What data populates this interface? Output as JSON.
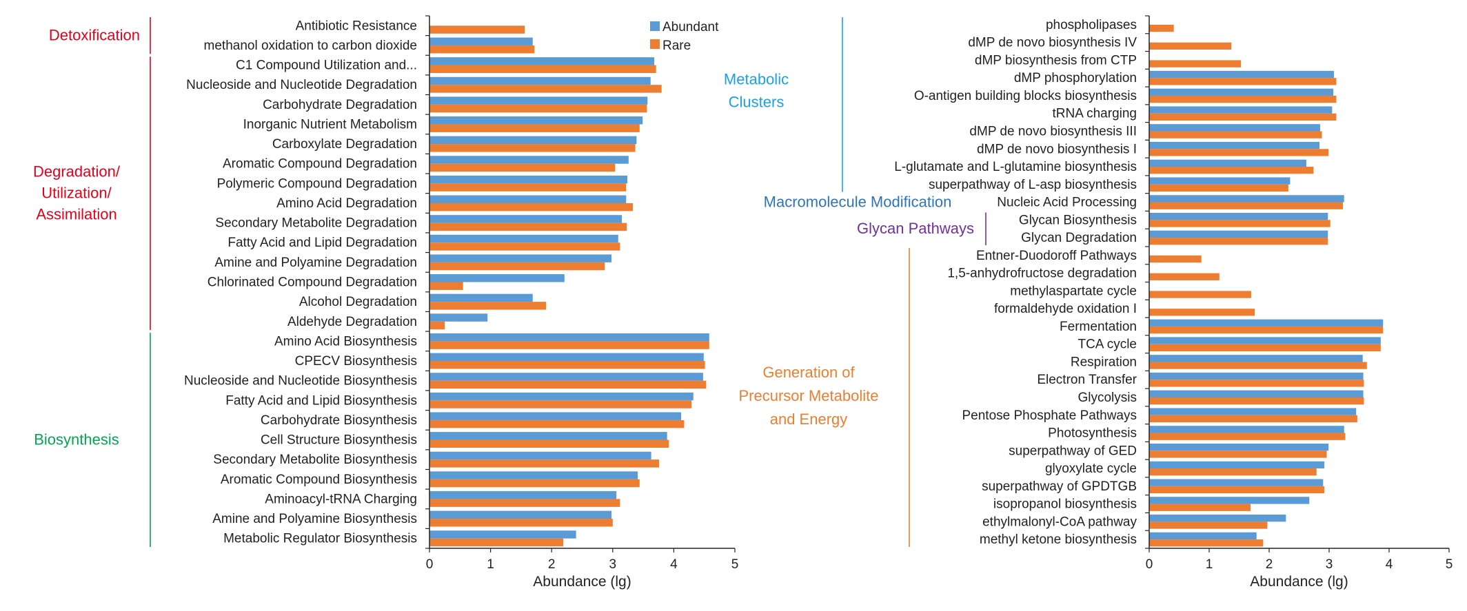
{
  "colors": {
    "abundant": "#5B9BD5",
    "rare": "#ED7D31",
    "axis": "#222222",
    "detox": "#E3001B",
    "degradation": "#E3001B",
    "biosynthesis": "#00A651",
    "metabolic_clusters": "#1BA1E2",
    "macromolecule": "#2E75B6",
    "glycan": "#7030A0",
    "generation": "#ED7D31"
  },
  "legend": {
    "position": "top-right",
    "abundant_label": "Abundant",
    "rare_label": "Rare"
  },
  "chart_data": [
    {
      "type": "bar",
      "orientation": "horizontal",
      "xlabel": "Abundance (lg)",
      "xlim": [
        0,
        5
      ],
      "xticks": [
        "0",
        "1",
        "2",
        "3",
        "4",
        "5"
      ],
      "grid": false,
      "categories": [
        "Antibiotic Resistance",
        "methanol oxidation to carbon dioxide",
        "C1 Compound Utilization and...",
        "Nucleoside and Nucleotide Degradation",
        "Carbohydrate Degradation",
        "Inorganic Nutrient Metabolism",
        "Carboxylate Degradation",
        "Aromatic Compound Degradation",
        "Polymeric Compound Degradation",
        "Amino Acid Degradation",
        "Secondary Metabolite Degradation",
        "Fatty Acid and Lipid Degradation",
        "Amine and Polyamine Degradation",
        "Chlorinated Compound Degradation",
        "Alcohol Degradation",
        "Aldehyde Degradation",
        "Amino Acid Biosynthesis",
        "CPECV Biosynthesis",
        "Nucleoside and Nucleotide Biosynthesis",
        "Fatty Acid and Lipid Biosynthesis",
        "Carbohydrate Biosynthesis",
        "Cell Structure Biosynthesis",
        "Secondary Metabolite Biosynthesis",
        "Aromatic Compound Biosynthesis",
        "Aminoacyl-tRNA Charging",
        "Amine and Polyamine Biosynthesis",
        "Metabolic Regulator Biosynthesis"
      ],
      "series": [
        {
          "name": "Abundant",
          "values": [
            null,
            1.69,
            3.68,
            3.62,
            3.57,
            3.49,
            3.39,
            3.26,
            3.24,
            3.22,
            3.15,
            3.09,
            2.98,
            2.21,
            1.69,
            0.95,
            4.58,
            4.49,
            4.48,
            4.32,
            4.12,
            3.89,
            3.63,
            3.41,
            3.06,
            2.98,
            2.4
          ]
        },
        {
          "name": "Rare",
          "values": [
            1.56,
            1.72,
            3.71,
            3.8,
            3.56,
            3.44,
            3.37,
            3.04,
            3.22,
            3.33,
            3.23,
            3.12,
            2.87,
            0.55,
            1.91,
            0.25,
            4.58,
            4.51,
            4.53,
            4.29,
            4.17,
            3.92,
            3.76,
            3.44,
            3.12,
            3.0,
            2.19
          ]
        }
      ],
      "groups": [
        {
          "label": "Detoxification",
          "color_key": "detox",
          "start": 0,
          "end": 1
        },
        {
          "label": "Degradation/ Utilization/ Assimilation",
          "lines": [
            "Degradation/",
            "Utilization/",
            "Assimilation"
          ],
          "color_key": "degradation",
          "start": 2,
          "end": 15
        },
        {
          "label": "Biosynthesis",
          "color_key": "biosynthesis",
          "start": 16,
          "end": 26
        }
      ]
    },
    {
      "type": "bar",
      "orientation": "horizontal",
      "xlabel": "Abundance (lg)",
      "xlim": [
        0,
        5
      ],
      "xticks": [
        "0",
        "1",
        "2",
        "3",
        "4",
        "5"
      ],
      "grid": false,
      "categories": [
        "phospholipases",
        "dMP de novo biosynthesis IV",
        "dMP biosynthesis from CTP",
        "dMP phosphorylation",
        "O-antigen building blocks biosynthesis",
        "tRNA charging",
        "dMP de novo biosynthesis III",
        "dMP de novo biosynthesis I",
        "L-glutamate and L-glutamine biosynthesis",
        "superpathway of L-asp biosynthesis",
        "Nucleic Acid Processing",
        "Glycan Biosynthesis",
        "Glycan Degradation",
        "Entner-Duodoroff Pathways",
        "1,5-anhydrofructose degradation",
        "methylaspartate cycle",
        "formaldehyde oxidation I",
        "Fermentation",
        "TCA cycle",
        "Respiration",
        "Electron Transfer",
        "Glycolysis",
        "Pentose Phosphate Pathways",
        "Photosynthesis",
        "superpathway of GED",
        "glyoxylate cycle",
        "superpathway of GPDTGB",
        "isopropanol biosynthesis",
        "ethylmalonyl-CoA pathway",
        "methyl ketone biosynthesis"
      ],
      "series": [
        {
          "name": "Abundant",
          "values": [
            null,
            null,
            null,
            3.08,
            3.07,
            3.05,
            2.85,
            2.84,
            2.62,
            2.35,
            3.25,
            2.98,
            2.98,
            null,
            null,
            null,
            null,
            3.9,
            3.86,
            3.56,
            3.57,
            3.57,
            3.45,
            3.25,
            2.99,
            2.92,
            2.9,
            2.67,
            2.28,
            1.79
          ]
        },
        {
          "name": "Rare",
          "values": [
            0.41,
            1.37,
            1.53,
            3.12,
            3.12,
            3.12,
            2.88,
            2.99,
            2.74,
            2.32,
            3.23,
            3.02,
            2.98,
            0.87,
            1.17,
            1.7,
            1.76,
            3.9,
            3.86,
            3.63,
            3.58,
            3.58,
            3.47,
            3.27,
            2.96,
            2.79,
            2.92,
            1.69,
            1.97,
            1.9
          ]
        }
      ],
      "groups": [
        {
          "label": "Metabolic Clusters",
          "lines": [
            "Metabolic",
            "Clusters"
          ],
          "color_key": "metabolic_clusters",
          "start": 0,
          "end": 9
        },
        {
          "label": "Macromolecule Modification",
          "color_key": "macromolecule",
          "start": 10,
          "end": 10
        },
        {
          "label": "Glycan Pathways",
          "color_key": "glycan",
          "start": 11,
          "end": 12
        },
        {
          "label": "Generation of Precursor Metabolite and Energy",
          "lines": [
            "Generation  of",
            "Precursor Metabolite",
            "and Energy"
          ],
          "color_key": "generation",
          "start": 13,
          "end": 29
        }
      ]
    }
  ]
}
